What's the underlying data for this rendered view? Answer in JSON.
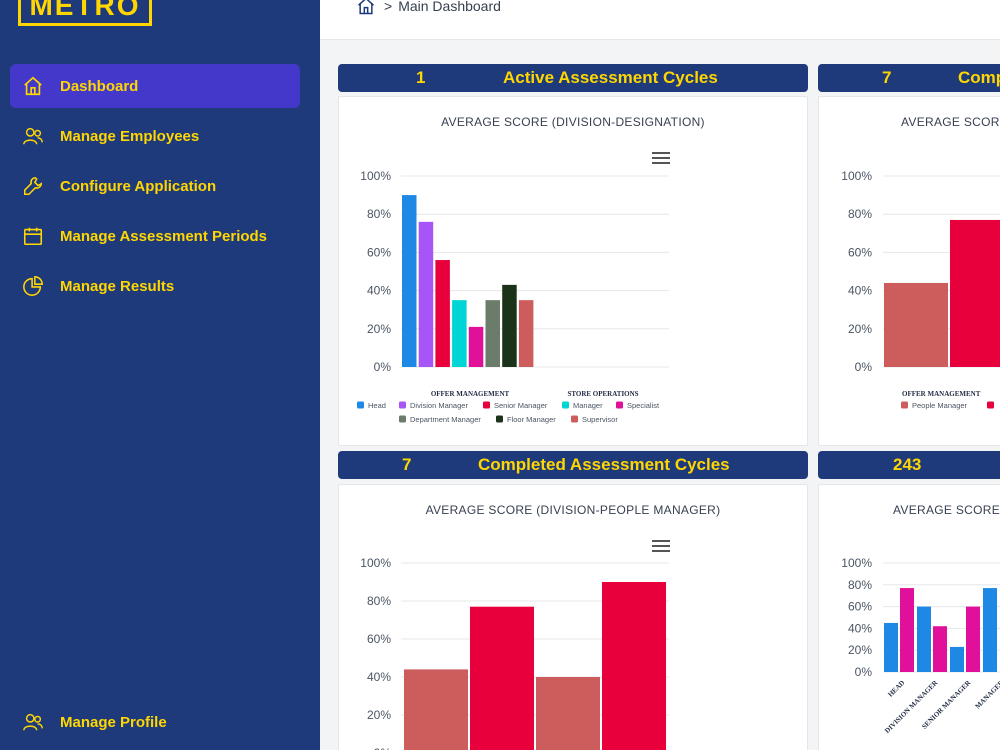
{
  "app": {
    "logo": "METRO"
  },
  "breadcrumb": {
    "icon": "home-icon",
    "separator": ">",
    "current": "Main Dashboard"
  },
  "sidebar": {
    "items": [
      {
        "label": "Dashboard",
        "icon": "home-icon",
        "active": true
      },
      {
        "label": "Manage Employees",
        "icon": "users-icon"
      },
      {
        "label": "Configure Application",
        "icon": "wrench-icon"
      },
      {
        "label": "Manage Assessment Periods",
        "icon": "calendar-icon"
      },
      {
        "label": "Manage Results",
        "icon": "pie-chart-icon"
      }
    ],
    "bottom_item": {
      "label": "Manage Profile",
      "icon": "users-icon"
    }
  },
  "cards": [
    {
      "count": "1",
      "title": "Active Assessment Cycles"
    },
    {
      "count": "7",
      "title": "Comp"
    },
    {
      "count": "7",
      "title": "Completed Assessment Cycles"
    },
    {
      "count": "243",
      "title": ""
    }
  ],
  "colors": {
    "sidebar": "#1e3a7b",
    "accent": "#ffd600",
    "active": "#4338ca"
  },
  "chart_data": [
    {
      "type": "bar",
      "title": "AVERAGE SCORE (DIVISION-DESIGNATION)",
      "categories": [
        "OFFER MANAGEMENT",
        "STORE OPERATIONS"
      ],
      "ylim": [
        0,
        100
      ],
      "yticks": [
        "0%",
        "20%",
        "40%",
        "60%",
        "80%",
        "100%"
      ],
      "series": [
        {
          "name": "Head",
          "color": "#1e88e5",
          "values": [
            90,
            null
          ]
        },
        {
          "name": "Division Manager",
          "color": "#a855f7",
          "values": [
            76,
            null
          ]
        },
        {
          "name": "Senior Manager",
          "color": "#e8003c",
          "values": [
            56,
            null
          ]
        },
        {
          "name": "Manager",
          "color": "#00d5d5",
          "values": [
            35,
            null
          ]
        },
        {
          "name": "Specialist",
          "color": "#e0109a",
          "values": [
            21,
            null
          ]
        },
        {
          "name": "Department Manager",
          "color": "#6b7c6b",
          "values": [
            35,
            null
          ]
        },
        {
          "name": "Floor Manager",
          "color": "#1b3318",
          "values": [
            43,
            null
          ]
        },
        {
          "name": "Supervisor",
          "color": "#cd5c5c",
          "values": [
            35,
            null
          ]
        }
      ]
    },
    {
      "type": "bar",
      "title": "AVERAGE SCOR",
      "categories": [
        "OFFER MANAGEMENT"
      ],
      "ylim": [
        0,
        100
      ],
      "yticks": [
        "0%",
        "20%",
        "40%",
        "60%",
        "80%",
        "100%"
      ],
      "series": [
        {
          "name": "People Manager",
          "color": "#cd5c5c",
          "values": [
            44
          ]
        },
        {
          "name": "",
          "color": "#e8003c",
          "values": [
            77
          ]
        }
      ]
    },
    {
      "type": "bar",
      "title": "AVERAGE SCORE (DIVISION-PEOPLE MANAGER)",
      "ylim": [
        0,
        100
      ],
      "yticks": [
        "0%",
        "20%",
        "40%",
        "60%",
        "80%",
        "100%"
      ],
      "series": [
        {
          "name": "",
          "color": "#cd5c5c",
          "values": [
            44,
            40
          ]
        },
        {
          "name": "",
          "color": "#e8003c",
          "values": [
            77,
            90
          ]
        }
      ]
    },
    {
      "type": "bar",
      "title": "AVERAGE SCORE(",
      "categories": [
        "HEAD",
        "DIVISION MANAGER",
        "SENIOR MANAGER",
        "MANAGER"
      ],
      "ylim": [
        0,
        100
      ],
      "yticks": [
        "0%",
        "20%",
        "40%",
        "60%",
        "80%",
        "100%"
      ],
      "series": [
        {
          "name": "",
          "color": "#1e88e5",
          "values": [
            45,
            60,
            23,
            77
          ]
        },
        {
          "name": "",
          "color": "#e0109a",
          "values": [
            77,
            42,
            60,
            null
          ]
        }
      ]
    }
  ]
}
